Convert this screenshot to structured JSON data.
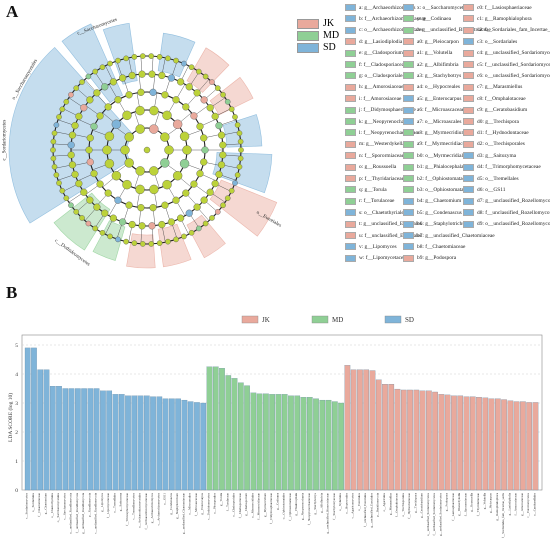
{
  "panels": {
    "a": "A",
    "b": "B"
  },
  "colors": {
    "JK": "#e9a99c",
    "MD": "#8fcf95",
    "SD": "#7fb4d9",
    "neutral_node": "#bcd23a"
  },
  "groups": [
    "JK",
    "MD",
    "SD"
  ],
  "cladogram": {
    "outer_labels": [
      {
        "text": "c__Sordariomycetes",
        "group": "SD"
      },
      {
        "text": "o__Saccharomycetales",
        "group": "SD"
      },
      {
        "text": "c__Saccharomycetes",
        "group": "SD"
      },
      {
        "text": "c__Dothideomycetes",
        "group": "MD"
      },
      {
        "text": "o__Eurotiales",
        "group": "JK"
      }
    ]
  },
  "biomarkers": [
    {
      "k": "a: g__Archaeorhizomyces",
      "g": "SD"
    },
    {
      "k": "b: f__Archaeorhizomycetaceae",
      "g": "SD"
    },
    {
      "k": "c: o__Archaeorhizomycetales",
      "g": "SD"
    },
    {
      "k": "d: g__Lasiodiplodia",
      "g": "JK"
    },
    {
      "k": "e: g__Cladosporium",
      "g": "MD"
    },
    {
      "k": "f: f__Cladosporiaceae",
      "g": "MD"
    },
    {
      "k": "g: o__Cladosporiales",
      "g": "MD"
    },
    {
      "k": "h: g__Amorosiaceae",
      "g": "JK"
    },
    {
      "k": "i: f__Amorosiaceae",
      "g": "JK"
    },
    {
      "k": "j: f__Didymosphaeriaceae",
      "g": "MD"
    },
    {
      "k": "k: g__Neopyrenochaeta",
      "g": "MD"
    },
    {
      "k": "l: f__Neopyrenochaetaceae",
      "g": "MD"
    },
    {
      "k": "m: g__Westerdykella",
      "g": "JK"
    },
    {
      "k": "n: f__Sporormiaceae",
      "g": "JK"
    },
    {
      "k": "o: g__Roussoella",
      "g": "JK"
    },
    {
      "k": "p: f__Thyridariaceae",
      "g": "JK"
    },
    {
      "k": "q: g__Torula",
      "g": "MD"
    },
    {
      "k": "r: f__Torulaceae",
      "g": "MD"
    },
    {
      "k": "s: o__Chaetothyriales",
      "g": "SD"
    },
    {
      "k": "t: g__unclassified_Eurotiales",
      "g": "JK"
    },
    {
      "k": "u: f__unclassified_Eurotiales",
      "g": "JK"
    },
    {
      "k": "v: g__Lipomyces",
      "g": "SD"
    },
    {
      "k": "w: f__Lipomycetaceae",
      "g": "SD"
    },
    {
      "k": "x: o__Saccharomycetales",
      "g": "SD"
    },
    {
      "k": "y: g__Codinaea",
      "g": "MD"
    },
    {
      "k": "z: g__unclassified_Bionectriaceae",
      "g": "MD"
    },
    {
      "k": "a0: g__Pleiocarpon",
      "g": "JK"
    },
    {
      "k": "a1: g__Volutella",
      "g": "JK"
    },
    {
      "k": "a2: g__Albifimbria",
      "g": "MD"
    },
    {
      "k": "a3: g__Stachybotrys",
      "g": "MD"
    },
    {
      "k": "a4: o__Hypocreales",
      "g": "JK"
    },
    {
      "k": "a5: g__Enterocarpus",
      "g": "SD"
    },
    {
      "k": "a6: f__Microascaceae",
      "g": "SD"
    },
    {
      "k": "a7: o__Microascales",
      "g": "SD"
    },
    {
      "k": "a8: g__Myrmecridium",
      "g": "MD"
    },
    {
      "k": "a9: f__Myrmecridiaceae",
      "g": "MD"
    },
    {
      "k": "b0: o__Myrmecridiales",
      "g": "MD"
    },
    {
      "k": "b1: g__Phialocephala",
      "g": "MD"
    },
    {
      "k": "b2: f__Ophiostomataceae",
      "g": "MD"
    },
    {
      "k": "b3: o__Ophiostomatales",
      "g": "MD"
    },
    {
      "k": "b4: g__Chaetomium",
      "g": "SD"
    },
    {
      "k": "b5: g__Condenascus",
      "g": "SD"
    },
    {
      "k": "b6: g__Staphylotrichum",
      "g": "SD"
    },
    {
      "k": "b7: g__unclassified_Chaetomiaceae",
      "g": "SD"
    },
    {
      "k": "b8: f__Chaetomiaceae",
      "g": "SD"
    },
    {
      "k": "b9: g__Podospora",
      "g": "JK"
    },
    {
      "k": "c0: f__Lasiosphaeriaceae",
      "g": "JK"
    },
    {
      "k": "c1: g__Ramophialophora",
      "g": "JK"
    },
    {
      "k": "c2: f__Sordariales_fam_Incertae_sedis",
      "g": "JK"
    },
    {
      "k": "c3: o__Sordariales",
      "g": "SD"
    },
    {
      "k": "c4: g__unclassified_Sordariomycetes",
      "g": "JK"
    },
    {
      "k": "c5: f__unclassified_Sordariomycetes",
      "g": "JK"
    },
    {
      "k": "c6: o__unclassified_Sordariomycetes",
      "g": "JK"
    },
    {
      "k": "c7: g__Marasmiellus",
      "g": "JK"
    },
    {
      "k": "c8: f__Omphalotaceae",
      "g": "JK"
    },
    {
      "k": "c9: g__Ceratobasidium",
      "g": "JK"
    },
    {
      "k": "d0: g__Trechispora",
      "g": "JK"
    },
    {
      "k": "d1: f__Hydnodontaceae",
      "g": "JK"
    },
    {
      "k": "d2: o__Trechisporales",
      "g": "JK"
    },
    {
      "k": "d3: g__Saitozyma",
      "g": "SD"
    },
    {
      "k": "d4: f__Trimorphomycetaceae",
      "g": "SD"
    },
    {
      "k": "d5: o__Tremellales",
      "g": "SD"
    },
    {
      "k": "d6: o__GS11",
      "g": "SD"
    },
    {
      "k": "d7: g__unclassified_Rozellomycota",
      "g": "SD"
    },
    {
      "k": "d8: f__unclassified_Rozellomycota",
      "g": "SD"
    },
    {
      "k": "d9: o__unclassified_Rozellomycota",
      "g": "SD"
    }
  ],
  "chart_data": {
    "type": "bar",
    "ylabel": "LDA SCORE (log 10)",
    "ylim": [
      0,
      5
    ],
    "yticks": [
      0,
      1,
      2,
      3,
      4,
      5
    ],
    "grid": true,
    "legend": [
      "JK",
      "MD",
      "SD"
    ],
    "legend_position": "top-center",
    "series": [
      {
        "name": "SD",
        "categories": [
          "c__Sordariomycetes",
          "o__Sordariales",
          "f__Chaetomiaceae",
          "g__Chaetomium",
          "o__Chaetothyriales",
          "o__Saccharomycetales",
          "c__Saccharomycetes",
          "o__unclassified_Rozellomycota",
          "f__unclassified_Rozellomycota",
          "g__unclassified_Rozellomycota",
          "p__Rozellomycota",
          "c__unclassified_Rozellomycota",
          "g__Lipomyces",
          "f__Lipomycetaceae",
          "o__Tremellales",
          "g__Saitozyma",
          "f__Trimorphomycetaceae",
          "c__Tremellomycetes",
          "o__Archaeorhizomycetales",
          "f__Archaeorhizomycetaceae",
          "g__Archaeorhizomyces",
          "c__Archaeorhizomycetes",
          "o__GS11",
          "g__Condenascus",
          "g__Staphylotrichum",
          "g__unclassified_Chaetomiaceae",
          "o__Microascales",
          "f__Microascaceae",
          "g__Enterocarpus"
        ],
        "values": [
          4.9,
          4.9,
          4.15,
          4.15,
          3.58,
          3.58,
          3.5,
          3.5,
          3.5,
          3.5,
          3.5,
          3.5,
          3.42,
          3.42,
          3.3,
          3.3,
          3.25,
          3.25,
          3.25,
          3.25,
          3.22,
          3.22,
          3.15,
          3.15,
          3.15,
          3.1,
          3.05,
          3.02,
          3.0
        ]
      },
      {
        "name": "MD",
        "categories": [
          "c__Dothideomycetes",
          "o__Pleosporales",
          "g__Torula",
          "f__Torulaceae",
          "o__Cladosporiales",
          "f__Cladosporiaceae",
          "g__Cladosporium",
          "o__Myrmecridiales",
          "f__Myrmecridiaceae",
          "g__Myrmecridium",
          "f__Didymosphaeriaceae",
          "g__Codinaea",
          "o__Ophiostomatales",
          "f__Ophiostomataceae",
          "g__Phialocephala",
          "g__Neopyrenochaeta",
          "f__Neopyrenochaetaceae",
          "g__Stachybotrys",
          "g__Albifimbria",
          "g__unclassified_Bionectriaceae",
          "f__Stachybotryaceae",
          "o__Xylariales"
        ],
        "values": [
          4.25,
          4.25,
          4.2,
          3.95,
          3.85,
          3.7,
          3.6,
          3.35,
          3.32,
          3.32,
          3.3,
          3.3,
          3.3,
          3.25,
          3.25,
          3.2,
          3.2,
          3.15,
          3.1,
          3.1,
          3.05,
          3.0
        ]
      },
      {
        "name": "JK",
        "categories": [
          "o__Hypocreales",
          "c__Agaricomycetes",
          "o__Eurotiales",
          "f__unclassified_Eurotiales",
          "g__unclassified_Eurotiales",
          "p__Basidiomycota",
          "o__Agaricales",
          "g__Marasmiellus",
          "f__Omphalotaceae",
          "o__Trechisporales",
          "f__Hydnodontaceae",
          "g__Trechispora",
          "g__Ceratobasidium",
          "o__unclassified_Sordariomycetes",
          "f__unclassified_Sordariomycetes",
          "g__unclassified_Sordariomycetes",
          "g__Podospora",
          "f__Lasiosphaeriaceae",
          "g__Westerdykella",
          "f__Sporormiaceae",
          "g__Roussoella",
          "f__Thyridariaceae",
          "g__Volutella",
          "g__Pleiocarpon",
          "g__Ramophialophora",
          "f__Sordariales_fam_Incertae_sedis",
          "g__Lasiodiplodia",
          "f__Amorosiaceae",
          "g__Amorosiaceae",
          "c__Eurotiomycetes",
          "o__Cantharellales"
        ],
        "values": [
          4.3,
          4.15,
          4.15,
          4.15,
          4.12,
          3.8,
          3.65,
          3.65,
          3.48,
          3.45,
          3.45,
          3.45,
          3.42,
          3.42,
          3.38,
          3.3,
          3.28,
          3.25,
          3.25,
          3.22,
          3.22,
          3.2,
          3.18,
          3.15,
          3.15,
          3.12,
          3.08,
          3.05,
          3.05,
          3.02,
          3.02
        ]
      }
    ]
  }
}
